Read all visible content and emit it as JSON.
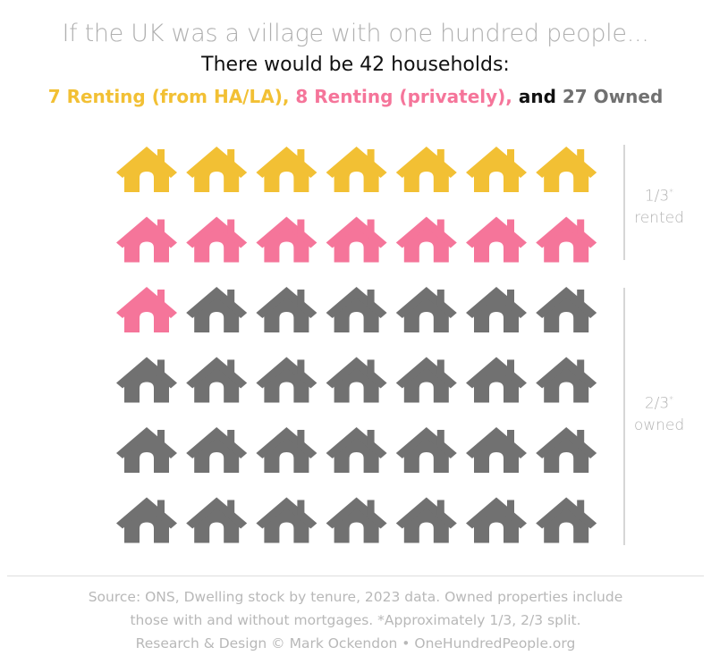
{
  "header": {
    "title": "If the UK was a village with one hundred people...",
    "subtitle": "There would be 42 households:",
    "legend": {
      "ha": "7 Renting (from HA/LA),",
      "private": "8 Renting (privately),",
      "and": "and",
      "owned": "27 Owned"
    }
  },
  "brackets": {
    "rented": {
      "fraction": "1/3",
      "mark": "*",
      "word": "rented"
    },
    "owned": {
      "fraction": "2/3",
      "mark": "*",
      "word": "owned"
    }
  },
  "footer": {
    "line1": "Source: ONS, Dwelling stock by tenure, 2023 data. Owned properties include",
    "line2": "those with and without mortgages. *Approximately 1/3, 2/3 split.",
    "line3": "Research & Design © Mark Ockendon • OneHundredPeople.org"
  },
  "chart_data": {
    "type": "pictogram",
    "unit": "household",
    "icon": "house-icon",
    "columns": 7,
    "categories": [
      "Renting (from HA/LA)",
      "Renting (privately)",
      "Owned"
    ],
    "values": [
      7,
      8,
      27
    ],
    "total": 42,
    "colors": [
      "#f2c034",
      "#f5759a",
      "#717171"
    ]
  }
}
